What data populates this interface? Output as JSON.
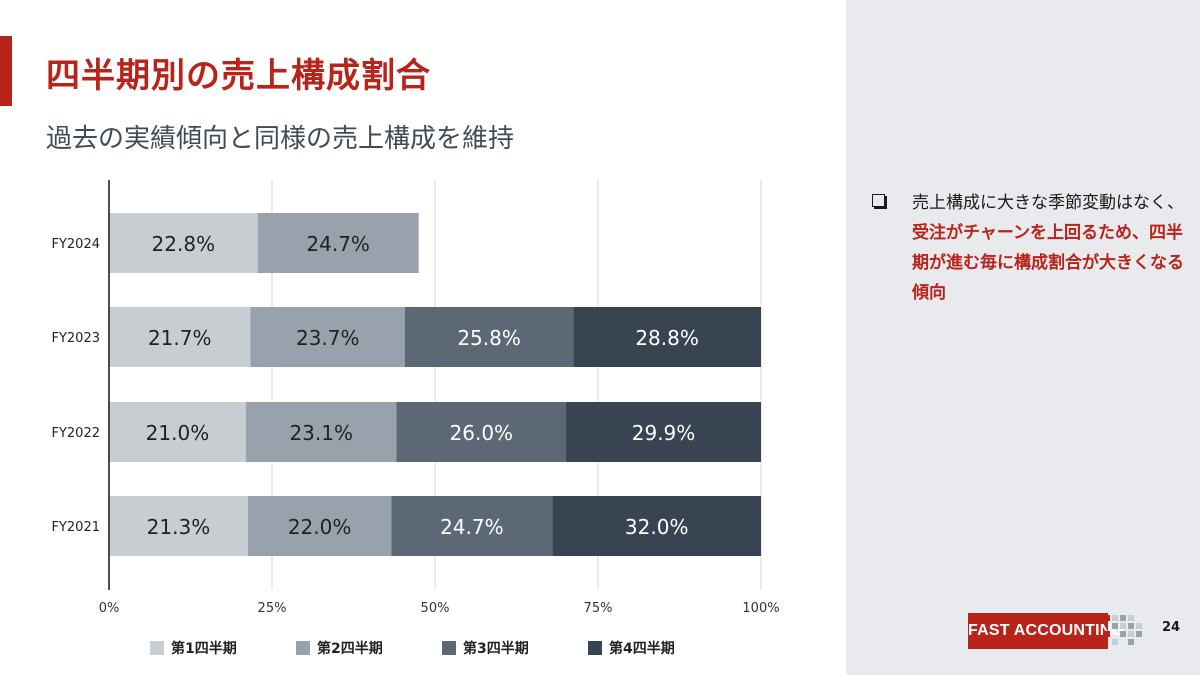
{
  "slide": {
    "title": "四半期別の売上構成割合",
    "subtitle": "過去の実績傾向と同様の売上構成を維持",
    "page_number": "24",
    "logo_text": "FAST ACCOUNTING"
  },
  "bullet": {
    "text_before": "売上構成に大きな季節変動はなく、",
    "text_highlight": "受注がチャーンを上回るため、四半期が進む毎に構成割合が大きくなる傾向"
  },
  "colors": {
    "accent": "#b8231a",
    "q1": "#c8cdd2",
    "q2": "#98a2ad",
    "q3": "#5c6876",
    "q4": "#394452"
  },
  "chart_data": {
    "type": "bar",
    "orientation": "horizontal",
    "stacked": true,
    "categories": [
      "FY2024",
      "FY2023",
      "FY2022",
      "FY2021"
    ],
    "series": [
      {
        "name": "第1四半期",
        "values": [
          22.8,
          21.7,
          21.0,
          21.3
        ],
        "labels": [
          "22.8%",
          "21.7%",
          "21.0%",
          "21.3%"
        ]
      },
      {
        "name": "第2四半期",
        "values": [
          24.7,
          23.7,
          23.1,
          22.0
        ],
        "labels": [
          "24.7%",
          "23.7%",
          "23.1%",
          "22.0%"
        ]
      },
      {
        "name": "第3四半期",
        "values": [
          null,
          25.8,
          26.0,
          24.7
        ],
        "labels": [
          "",
          "25.8%",
          "26.0%",
          "24.7%"
        ]
      },
      {
        "name": "第4四半期",
        "values": [
          null,
          28.8,
          29.9,
          32.0
        ],
        "labels": [
          "",
          "28.8%",
          "29.9%",
          "32.0%"
        ]
      }
    ],
    "xlim": [
      0,
      100
    ],
    "xticks": [
      0,
      25,
      50,
      75,
      100
    ],
    "xtick_labels": [
      "0%",
      "25%",
      "50%",
      "75%",
      "100%"
    ],
    "grid": true,
    "legend": "bottom"
  }
}
